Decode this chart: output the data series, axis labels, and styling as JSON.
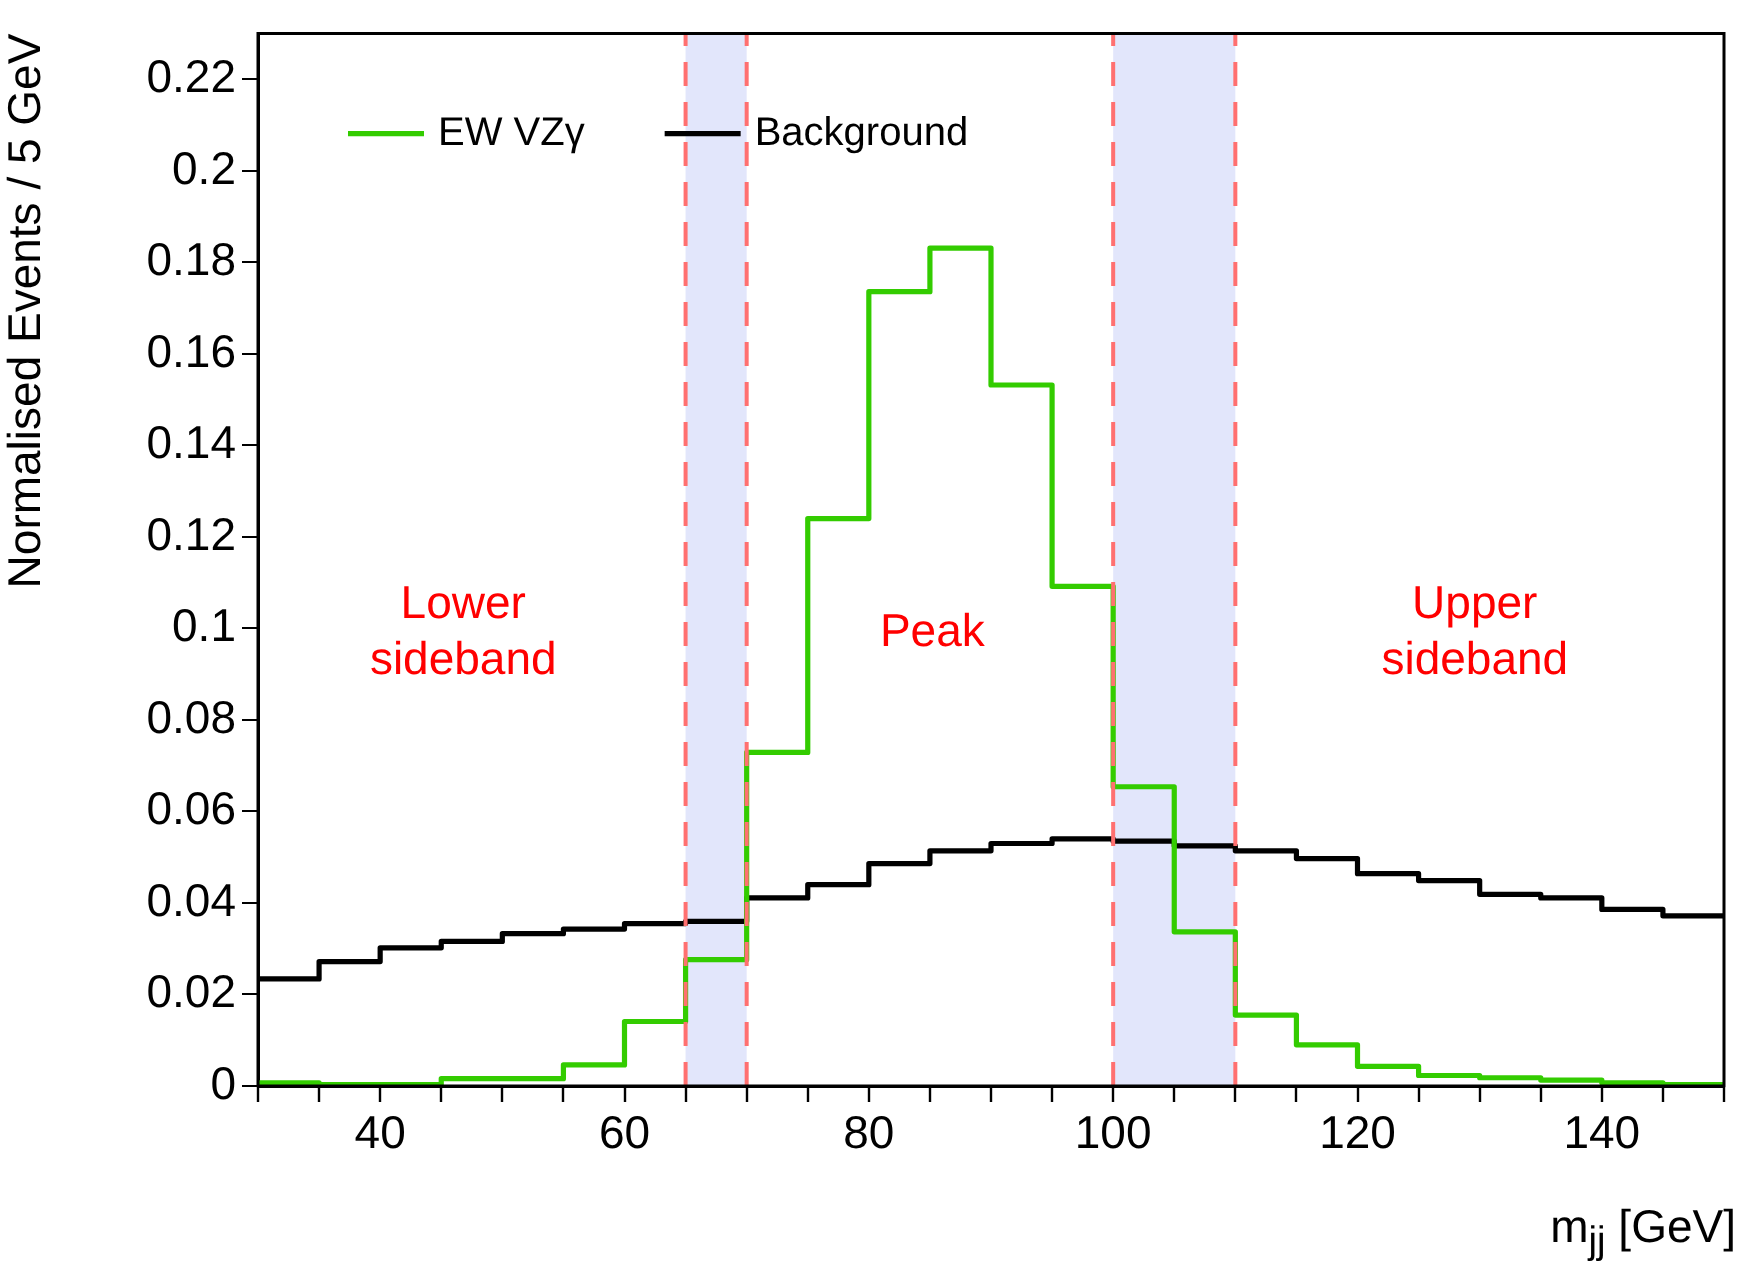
{
  "chart_data": {
    "type": "histogram",
    "xlabel": "m$_{jj}$ [GeV]",
    "ylabel": "Normalised Events / 5 GeV",
    "bins": [
      30,
      35,
      40,
      45,
      50,
      55,
      60,
      65,
      70,
      75,
      80,
      85,
      90,
      95,
      100,
      105,
      110,
      115,
      120,
      125,
      130,
      135,
      140,
      145,
      150
    ],
    "series": [
      {
        "name": "EW VZγ",
        "color": "#33cc00",
        "values": [
          0.0007,
          0.0003,
          0.0003,
          0.0016,
          0.0016,
          0.0046,
          0.0141,
          0.0276,
          0.0729,
          0.124,
          0.1736,
          0.1831,
          0.1532,
          0.1092,
          0.0654,
          0.0337,
          0.0155,
          0.009,
          0.0043,
          0.0023,
          0.0018,
          0.0013,
          0.0007,
          0.0003
        ]
      },
      {
        "name": "Background",
        "color": "#000000",
        "values": [
          0.0234,
          0.0272,
          0.0302,
          0.0316,
          0.0333,
          0.0343,
          0.0355,
          0.036,
          0.0411,
          0.044,
          0.0486,
          0.0514,
          0.053,
          0.054,
          0.0535,
          0.0525,
          0.0514,
          0.0497,
          0.0464,
          0.0449,
          0.0419,
          0.0411,
          0.0386,
          0.0372
        ]
      }
    ],
    "xlim": [
      30,
      150
    ],
    "xticks": [
      {
        "value": 30,
        "label": null
      },
      {
        "value": 35,
        "label": null
      },
      40,
      {
        "value": 45,
        "label": null
      },
      {
        "value": 50,
        "label": null
      },
      {
        "value": 55,
        "label": null
      },
      60,
      {
        "value": 65,
        "label": null
      },
      {
        "value": 70,
        "label": null
      },
      {
        "value": 75,
        "label": null
      },
      80,
      {
        "value": 85,
        "label": null
      },
      {
        "value": 90,
        "label": null
      },
      {
        "value": 95,
        "label": null
      },
      100,
      {
        "value": 105,
        "label": null
      },
      {
        "value": 110,
        "label": null
      },
      {
        "value": 115,
        "label": null
      },
      120,
      {
        "value": 125,
        "label": null
      },
      {
        "value": 130,
        "label": null
      },
      {
        "value": 135,
        "label": null
      },
      140,
      {
        "value": 145,
        "label": null
      },
      {
        "value": 150,
        "label": null
      }
    ],
    "ylim": [
      0,
      0.23
    ],
    "yticks": [
      0,
      0.02,
      0.04,
      0.06,
      0.08,
      0.1,
      0.12,
      0.14,
      0.16,
      0.18,
      0.2,
      0.22
    ],
    "bands": [
      {
        "axis": "x",
        "from": 65,
        "to": 70,
        "color": "#8c9aee"
      },
      {
        "axis": "x",
        "from": 100,
        "to": 110,
        "color": "#8c9aee"
      }
    ],
    "ref_lines": [
      {
        "axis": "x",
        "value": 65,
        "color": "#ff7070",
        "line_style": "dashed"
      },
      {
        "axis": "x",
        "value": 70,
        "color": "#ff7070",
        "line_style": "dashed"
      },
      {
        "axis": "x",
        "value": 100,
        "color": "#ff7070",
        "line_style": "dashed"
      },
      {
        "axis": "x",
        "value": 110,
        "color": "#ff7070",
        "line_style": "dashed"
      }
    ],
    "annotations": [
      "Lower sideband",
      "Peak",
      "Upper sideband"
    ],
    "legend": "top left",
    "grid": false
  }
}
